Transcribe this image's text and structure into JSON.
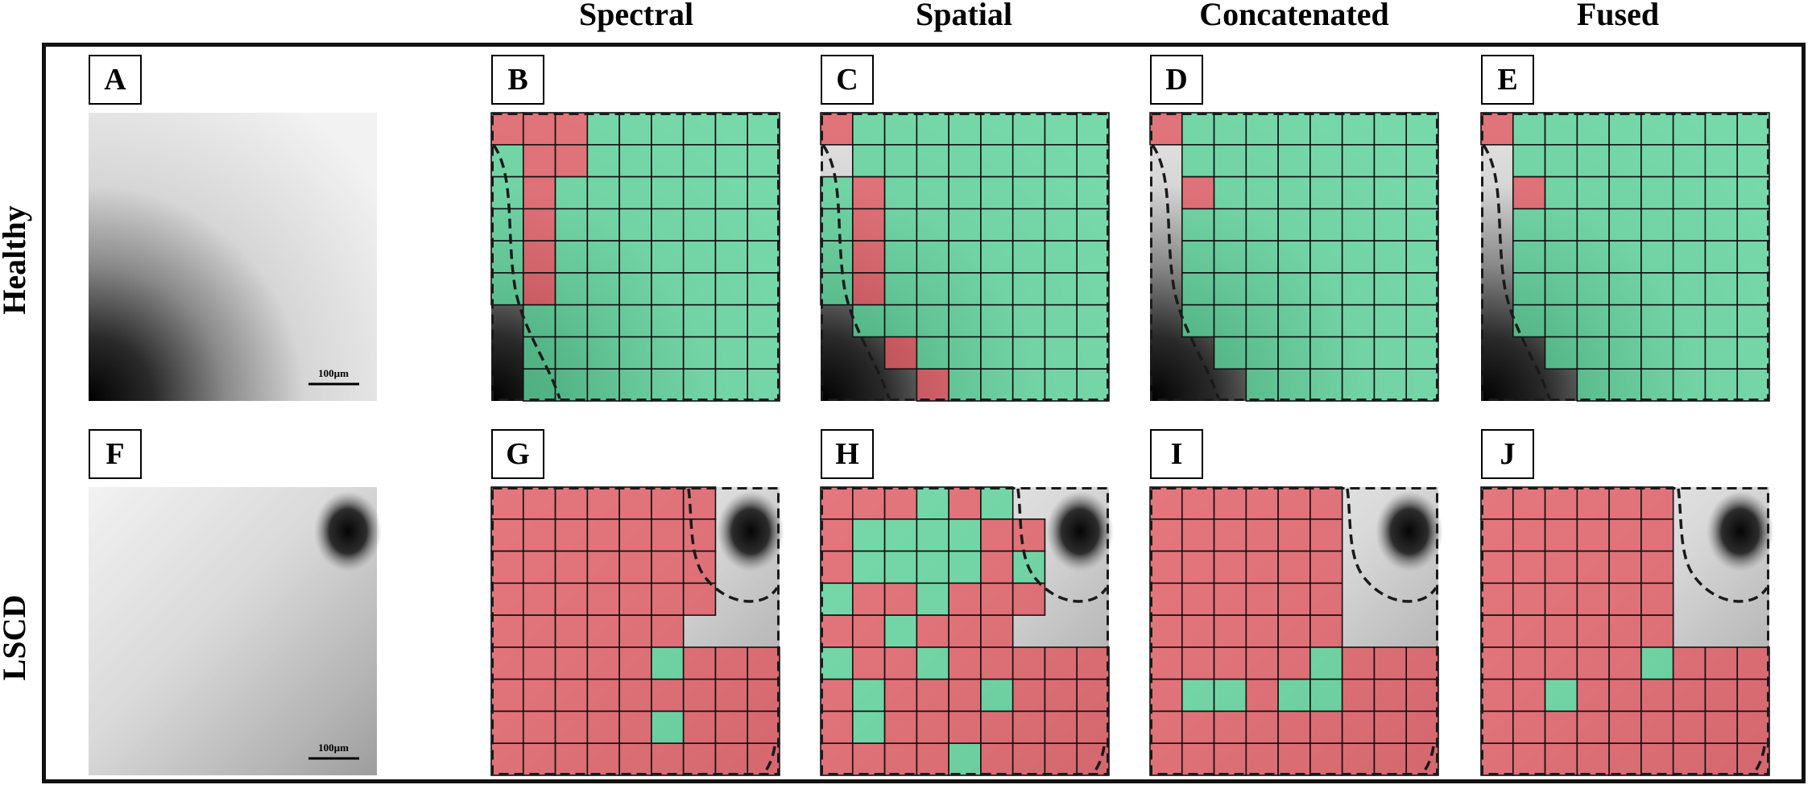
{
  "column_headers": [
    "Spectral",
    "Spatial",
    "Concatenated",
    "Fused"
  ],
  "row_headers": [
    "Healthy",
    "LSCD"
  ],
  "scale_bar_label": "100µm",
  "colors": {
    "positive_overlay": "#5cd39a",
    "negative_overlay": "#e05a64",
    "grid_line": "#111111",
    "frame": "#111111"
  },
  "panels": [
    {
      "label": "A",
      "row": 0,
      "col": 0,
      "type": "image",
      "image": "healthy"
    },
    {
      "label": "B",
      "row": 0,
      "col": 1,
      "type": "grid",
      "image": "healthy",
      "classification": "Spectral"
    },
    {
      "label": "C",
      "row": 0,
      "col": 2,
      "type": "grid",
      "image": "healthy",
      "classification": "Spatial"
    },
    {
      "label": "D",
      "row": 0,
      "col": 3,
      "type": "grid",
      "image": "healthy",
      "classification": "Concatenated"
    },
    {
      "label": "E",
      "row": 0,
      "col": 4,
      "type": "grid",
      "image": "healthy",
      "classification": "Fused"
    },
    {
      "label": "F",
      "row": 1,
      "col": 0,
      "type": "image",
      "image": "lscd"
    },
    {
      "label": "G",
      "row": 1,
      "col": 1,
      "type": "grid",
      "image": "lscd",
      "classification": "Spectral"
    },
    {
      "label": "H",
      "row": 1,
      "col": 2,
      "type": "grid",
      "image": "lscd",
      "classification": "Spatial"
    },
    {
      "label": "I",
      "row": 1,
      "col": 3,
      "type": "grid",
      "image": "lscd",
      "classification": "Concatenated"
    },
    {
      "label": "J",
      "row": 1,
      "col": 4,
      "type": "grid",
      "image": "lscd",
      "classification": "Fused"
    }
  ],
  "grids": {
    "B": [
      "RRR......",
      ".RR......",
      ".R.......",
      ".R.......",
      ".R.......",
      ".R.......",
      "-........",
      "-........",
      "-........"
    ],
    "C": [
      "R........",
      "-........",
      ".R.......",
      ".R.......",
      ".R.......",
      ".R.......",
      "-........",
      "--R......",
      "---R....."
    ],
    "D": [
      "R........",
      "-........",
      "-R.......",
      "-........",
      "-........",
      "-........",
      "-........",
      "--.......",
      "---......."
    ],
    "E": [
      "R........",
      "-........",
      "-R.......",
      "-........",
      "-........",
      "-........",
      "-........",
      "--.......",
      "---......"
    ],
    "G": [
      "RRRRRRR--",
      "RRRRRRR--",
      "RRRRRRR--",
      "RRRRRRR--",
      "RRRRRR---",
      "RRRRR.RRR",
      "RRRRRRRRR",
      "RRRRR.RRR",
      "RRRRRRRRR"
    ],
    "H": [
      "RRR.R.---",
      "R....RR--",
      "R....R.--",
      ".RR.RRR--",
      "RR.RRR---",
      ".RR.RRRRR",
      "R.RRR.RRR",
      "R.RRRRRRR",
      "RRRR.RRRR"
    ],
    "I": [
      "RRRRRR---",
      "RRRRRR---",
      "RRRRRR---",
      "RRRRRR---",
      "RRRRRR---",
      "RRRRR.RRR",
      "R..R..RRR",
      "RRRRRRRRR",
      "RRRRRRRRR"
    ],
    "J": [
      "RRRRRR---",
      "RRRRRR---",
      "RRRRRR---",
      "RRRRRR---",
      "RRRRRR---",
      "RRRRR.RRR",
      "RR.RRRRRR",
      "RRRRRRRRR",
      "RRRRRRRRR"
    ]
  },
  "grid_legend": {
    ".": "positive_overlay",
    "R": "negative_overlay",
    "-": "no overlay"
  }
}
